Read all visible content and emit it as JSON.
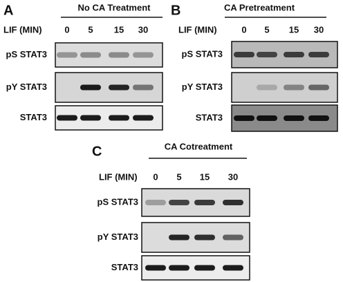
{
  "panels": [
    {
      "letter": "A",
      "title": "No CA Treatment",
      "lif_label": "LIF (MIN)",
      "timepoints": [
        "0",
        "5",
        "15",
        "30"
      ],
      "rows": [
        "pS STAT3",
        "pY STAT3",
        "STAT3"
      ]
    },
    {
      "letter": "B",
      "title": "CA Pretreatment",
      "lif_label": "LIF (MIN)",
      "timepoints": [
        "0",
        "5",
        "15",
        "30"
      ],
      "rows": [
        "pS STAT3",
        "pY STAT3",
        "STAT3"
      ]
    },
    {
      "letter": "C",
      "title": "CA Cotreatment",
      "lif_label": "LIF (MIN)",
      "timepoints": [
        "0",
        "5",
        "15",
        "30"
      ],
      "rows": [
        "pS STAT3",
        "pY STAT3",
        "STAT3"
      ]
    }
  ]
}
